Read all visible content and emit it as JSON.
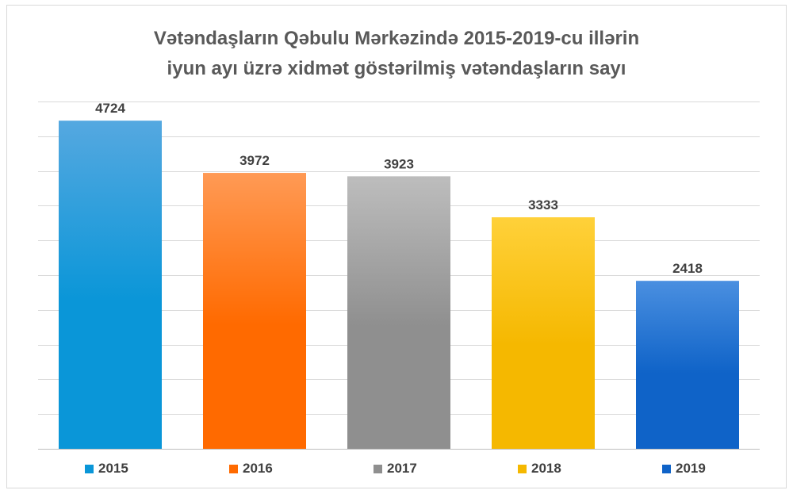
{
  "chart_data": {
    "type": "bar",
    "title_lines": [
      "Vətəndaşların Qəbulu Mərkəzində 2015-2019-cu illərin",
      "iyun ayı üzrə xidmət göstərilmiş vətəndaşların sayı"
    ],
    "categories": [
      "2015",
      "2016",
      "2017",
      "2018",
      "2019"
    ],
    "values": [
      4724,
      3972,
      3923,
      3333,
      2418
    ],
    "data_labels": [
      "4724",
      "3972",
      "3923",
      "3333",
      "2418"
    ],
    "colors": [
      [
        "#55a8e0",
        "#0a96d8"
      ],
      [
        "#ff9a55",
        "#ff6a00"
      ],
      [
        "#bdbdbd",
        "#8f8f8f"
      ],
      [
        "#ffd13a",
        "#f5b800"
      ],
      [
        "#4a8fe0",
        "#0f63c8"
      ]
    ],
    "ylim": [
      0,
      5000
    ],
    "grid": true,
    "legend_position": "bottom",
    "xlabel": "",
    "ylabel": ""
  }
}
